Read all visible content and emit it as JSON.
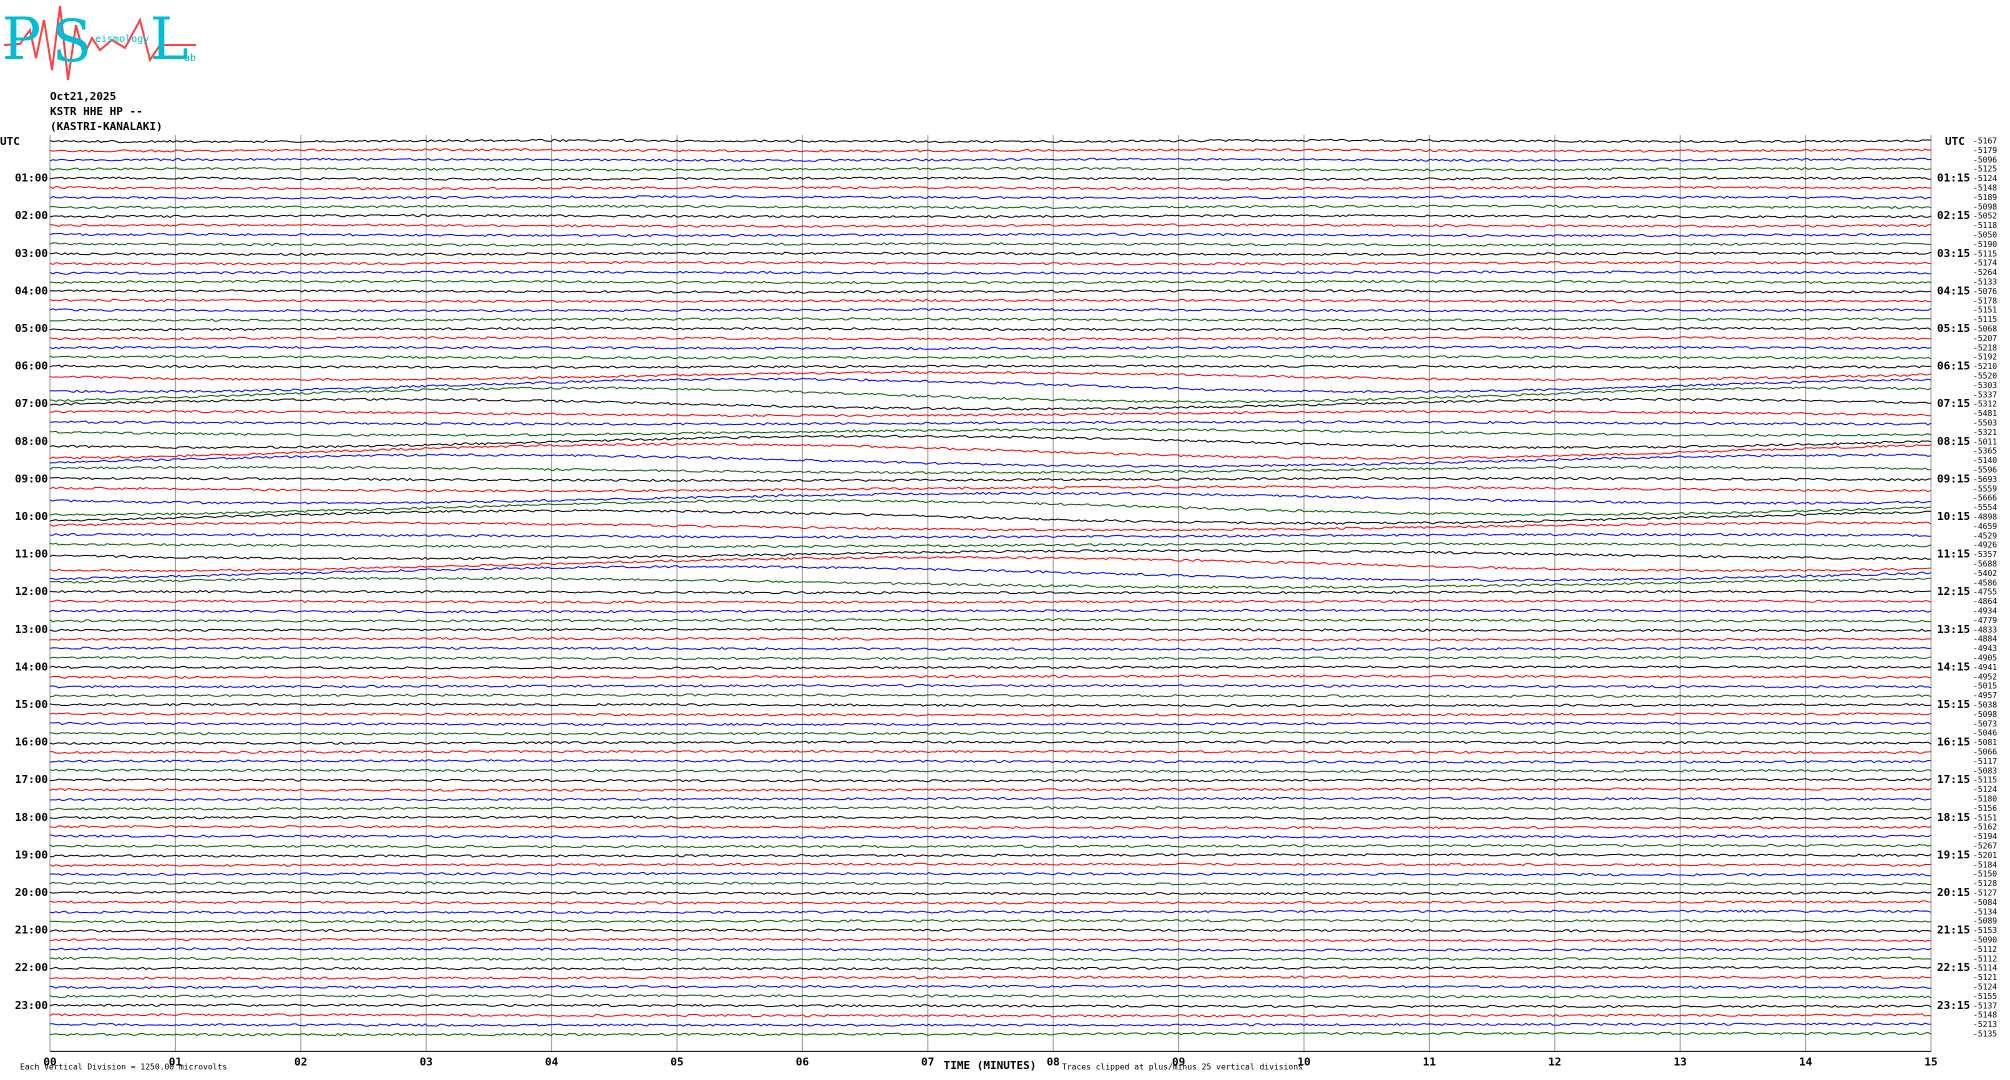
{
  "logo": {
    "letters": [
      "P",
      "S",
      "L"
    ],
    "small": [
      "eismology",
      "ab"
    ]
  },
  "chart_data": {
    "type": "helicorder",
    "date": "Oct21,2025",
    "station": "KSTR HHE HP --",
    "location": "(KASTRI-KANALAKI)",
    "left_axis_title": "UTC",
    "right_axis_title": "UTC",
    "left_labels": [
      "01:00",
      "02:00",
      "03:00",
      "04:00",
      "05:00",
      "06:00",
      "07:00",
      "08:00",
      "09:00",
      "10:00",
      "11:00",
      "12:00",
      "13:00",
      "14:00",
      "15:00",
      "16:00",
      "17:00",
      "18:00",
      "19:00",
      "20:00",
      "21:00",
      "22:00",
      "23:00"
    ],
    "right_labels": [
      "01:15",
      "02:15",
      "03:15",
      "04:15",
      "05:15",
      "06:15",
      "07:15",
      "08:15",
      "09:15",
      "10:15",
      "11:15",
      "12:15",
      "13:15",
      "14:15",
      "15:15",
      "16:15",
      "17:15",
      "18:15",
      "19:15",
      "20:15",
      "21:15",
      "22:15",
      "23:15"
    ],
    "trace_colors": [
      "#000000",
      "#ff0000",
      "#0000ff",
      "#006400"
    ],
    "offsets": [
      -5167,
      -5179,
      -5096,
      -5125,
      -5124,
      -5148,
      -5189,
      -5098,
      -5052,
      -5118,
      -5050,
      -5190,
      -5115,
      -5174,
      -5264,
      -5133,
      -5076,
      -5178,
      -5151,
      -5115,
      -5068,
      -5207,
      -5218,
      -5192,
      -5210,
      -5520,
      -5303,
      -5337,
      -5312,
      -5481,
      -5503,
      -5321,
      -5011,
      -5365,
      -5140,
      -5596,
      -5693,
      -5559,
      -5666,
      -5554,
      -4898,
      -4659,
      -4529,
      -4926,
      -5357,
      -5688,
      -5402,
      -4586,
      -4755,
      -4864,
      -4934,
      -4779,
      -4833,
      -4884,
      -4943,
      -4905,
      -4941,
      -4952,
      -5015,
      -4957,
      -5038,
      -5098,
      -5073,
      -5046,
      -5081,
      -5066,
      -5117,
      -5083,
      -5115,
      -5124,
      -5180,
      -5156,
      -5151,
      -5162,
      -5194,
      -5267,
      -5201,
      -5184,
      -5150,
      -5128,
      -5127,
      -5084,
      -5134,
      -5089,
      -5153,
      -5090,
      -5112,
      -5112,
      -5114,
      -5121,
      -5124,
      -5155,
      -5137,
      -5148,
      -5213,
      -5135
    ],
    "xlim": [
      0,
      15
    ],
    "xticks": [
      {
        "value": 0,
        "label": "00"
      },
      {
        "value": 1,
        "label": "01"
      },
      {
        "value": 2,
        "label": "02"
      },
      {
        "value": 3,
        "label": "03"
      },
      {
        "value": 4,
        "label": "04"
      },
      {
        "value": 5,
        "label": "05"
      },
      {
        "value": 6,
        "label": "06"
      },
      {
        "value": 7,
        "label": "07"
      },
      {
        "value": 8,
        "label": "08"
      },
      {
        "value": 9,
        "label": "09"
      },
      10,
      11,
      12,
      13,
      14,
      15
    ],
    "x_label": "TIME (MINUTES)",
    "scale_note": "Each Vertical Division = 1250.00 microvolts",
    "clip_note": "Traces clipped at plus/minus 25 vertical divisions",
    "grid": true
  }
}
